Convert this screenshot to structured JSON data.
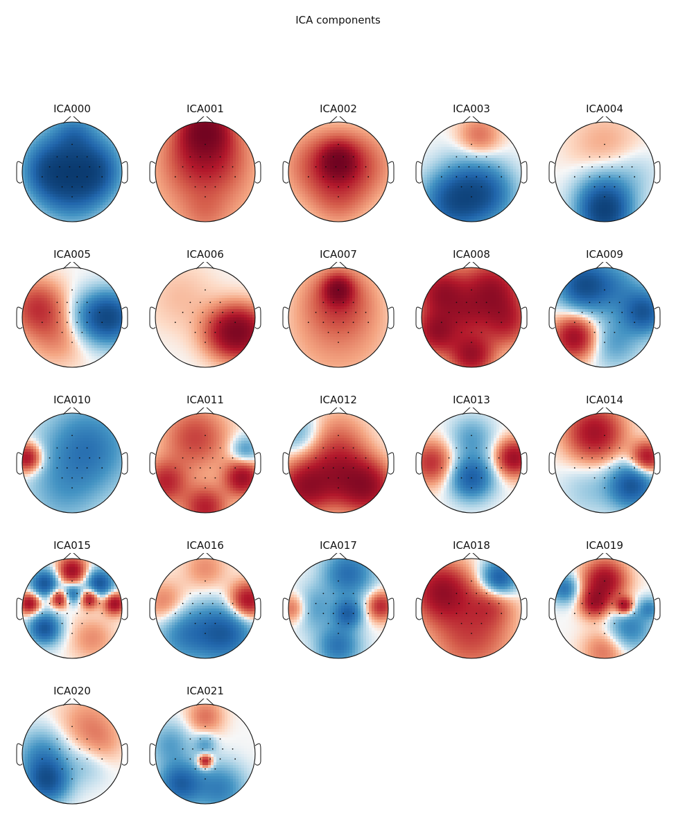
{
  "title": "ICA components",
  "chart_data": {
    "type": "heatmap",
    "title": "ICA components",
    "colormap": "RdBu_r",
    "colors": {
      "red": "#67001f",
      "blue": "#053061",
      "white": "#f7f7f7"
    },
    "components": [
      {
        "name": "ICA000",
        "blobs": [
          [
            0.0,
            0.2,
            -0.8,
            0.6
          ],
          [
            -0.45,
            0.0,
            -0.6,
            0.35
          ],
          [
            0.45,
            0.0,
            -0.6,
            0.35
          ],
          [
            0.0,
            -0.4,
            -0.5,
            0.45
          ],
          [
            0.05,
            0.75,
            -0.3,
            0.25
          ]
        ]
      },
      {
        "name": "ICA001",
        "blobs": [
          [
            0.0,
            0.85,
            1.0,
            0.3
          ],
          [
            0.0,
            0.45,
            0.7,
            0.5
          ],
          [
            0.0,
            -0.2,
            0.35,
            0.8
          ],
          [
            0.0,
            -0.85,
            0.15,
            0.3
          ]
        ]
      },
      {
        "name": "ICA002",
        "blobs": [
          [
            0.0,
            0.2,
            0.95,
            0.22
          ],
          [
            0.0,
            0.2,
            0.4,
            0.45
          ],
          [
            -0.5,
            0.1,
            0.35,
            0.5
          ],
          [
            0.5,
            0.1,
            0.35,
            0.5
          ],
          [
            0.0,
            -0.6,
            0.3,
            0.4
          ]
        ]
      },
      {
        "name": "ICA003",
        "blobs": [
          [
            0.15,
            0.7,
            0.45,
            0.3
          ],
          [
            -0.35,
            -0.6,
            -1.0,
            0.42
          ],
          [
            0.3,
            -0.45,
            -0.75,
            0.4
          ],
          [
            0.0,
            0.1,
            -0.2,
            0.4
          ]
        ]
      },
      {
        "name": "ICA004",
        "blobs": [
          [
            0.0,
            0.5,
            0.22,
            0.5
          ],
          [
            0.0,
            -0.85,
            -1.0,
            0.35
          ],
          [
            0.0,
            -0.45,
            -0.55,
            0.4
          ],
          [
            0.6,
            0.0,
            -0.15,
            0.35
          ]
        ]
      },
      {
        "name": "ICA005",
        "blobs": [
          [
            -0.7,
            0.2,
            0.65,
            0.38
          ],
          [
            0.8,
            0.0,
            -0.95,
            0.35
          ],
          [
            0.4,
            0.0,
            -0.45,
            0.35
          ],
          [
            -0.3,
            -0.4,
            0.3,
            0.4
          ]
        ]
      },
      {
        "name": "ICA006",
        "blobs": [
          [
            0.75,
            -0.3,
            1.0,
            0.35
          ],
          [
            0.4,
            -0.3,
            0.55,
            0.35
          ],
          [
            -0.5,
            0.4,
            0.15,
            0.5
          ]
        ]
      },
      {
        "name": "ICA007",
        "blobs": [
          [
            0.0,
            0.55,
            0.95,
            0.18
          ],
          [
            0.0,
            0.4,
            0.5,
            0.45
          ],
          [
            0.0,
            -0.3,
            0.3,
            0.75
          ]
        ]
      },
      {
        "name": "ICA008",
        "blobs": [
          [
            -0.6,
            0.5,
            1.0,
            0.35
          ],
          [
            0.4,
            0.55,
            1.0,
            0.4
          ],
          [
            -0.7,
            -0.3,
            1.0,
            0.3
          ],
          [
            0.0,
            -0.75,
            1.0,
            0.3
          ],
          [
            0.7,
            -0.1,
            0.7,
            0.35
          ],
          [
            -0.1,
            0.05,
            0.5,
            0.3
          ]
        ]
      },
      {
        "name": "ICA009",
        "blobs": [
          [
            -0.45,
            0.65,
            -1.0,
            0.35
          ],
          [
            0.8,
            0.1,
            -0.95,
            0.3
          ],
          [
            -0.6,
            -0.4,
            1.0,
            0.3
          ],
          [
            0.2,
            -0.5,
            -0.4,
            0.35
          ],
          [
            0.2,
            0.6,
            -0.5,
            0.4
          ]
        ]
      },
      {
        "name": "ICA010",
        "blobs": [
          [
            -0.9,
            0.1,
            1.0,
            0.2
          ],
          [
            0.3,
            0.3,
            -0.7,
            0.6
          ],
          [
            -0.2,
            -0.6,
            -0.3,
            0.5
          ]
        ]
      },
      {
        "name": "ICA011",
        "blobs": [
          [
            -0.2,
            0.5,
            0.6,
            0.45
          ],
          [
            0.75,
            -0.3,
            1.0,
            0.25
          ],
          [
            -0.8,
            -0.4,
            0.75,
            0.3
          ],
          [
            0.0,
            -0.9,
            0.8,
            0.3
          ],
          [
            0.8,
            0.25,
            -0.5,
            0.2
          ]
        ]
      },
      {
        "name": "ICA012",
        "blobs": [
          [
            -0.8,
            0.6,
            -0.35,
            0.3
          ],
          [
            0.0,
            -0.2,
            0.9,
            0.45
          ],
          [
            -0.7,
            -0.5,
            0.9,
            0.35
          ],
          [
            0.6,
            -0.5,
            0.9,
            0.35
          ],
          [
            0.0,
            0.6,
            0.25,
            0.4
          ]
        ]
      },
      {
        "name": "ICA013",
        "blobs": [
          [
            0.85,
            0.1,
            1.0,
            0.25
          ],
          [
            -0.8,
            0.0,
            0.7,
            0.3
          ],
          [
            0.0,
            -0.3,
            -0.9,
            0.3
          ],
          [
            0.0,
            0.5,
            -0.4,
            0.3
          ]
        ]
      },
      {
        "name": "ICA014",
        "blobs": [
          [
            -0.2,
            0.6,
            0.95,
            0.4
          ],
          [
            0.85,
            0.1,
            0.95,
            0.22
          ],
          [
            0.55,
            -0.45,
            -1.0,
            0.32
          ],
          [
            -0.3,
            -0.5,
            -0.2,
            0.4
          ]
        ]
      },
      {
        "name": "ICA015",
        "blobs": [
          [
            -0.85,
            0.1,
            1.0,
            0.15
          ],
          [
            0.85,
            0.1,
            1.0,
            0.15
          ],
          [
            0.0,
            0.75,
            1.0,
            0.2
          ],
          [
            -0.55,
            0.5,
            -1.0,
            0.2
          ],
          [
            0.55,
            0.5,
            -1.0,
            0.2
          ],
          [
            -0.55,
            -0.4,
            -1.0,
            0.22
          ],
          [
            0.0,
            0.3,
            -0.8,
            0.15
          ],
          [
            0.35,
            0.2,
            1.0,
            0.13
          ],
          [
            -0.25,
            0.2,
            1.0,
            0.13
          ],
          [
            0.4,
            -0.6,
            0.3,
            0.3
          ]
        ]
      },
      {
        "name": "ICA016",
        "blobs": [
          [
            0.85,
            0.15,
            1.0,
            0.25
          ],
          [
            -0.8,
            0.1,
            0.4,
            0.3
          ],
          [
            0.4,
            -0.5,
            -0.9,
            0.4
          ],
          [
            -0.4,
            -0.5,
            -0.6,
            0.4
          ],
          [
            0.0,
            0.8,
            0.3,
            0.3
          ]
        ]
      },
      {
        "name": "ICA017",
        "blobs": [
          [
            0.85,
            0.05,
            0.75,
            0.2
          ],
          [
            -0.9,
            0.0,
            0.5,
            0.2
          ],
          [
            0.2,
            0.7,
            -0.75,
            0.35
          ],
          [
            0.2,
            -0.1,
            -0.8,
            0.2
          ],
          [
            0.0,
            -0.75,
            -0.7,
            0.3
          ],
          [
            -0.5,
            0.0,
            -0.4,
            0.3
          ]
        ]
      },
      {
        "name": "ICA018",
        "blobs": [
          [
            -0.6,
            0.35,
            1.0,
            0.4
          ],
          [
            0.55,
            0.6,
            -1.0,
            0.25
          ],
          [
            0.0,
            -0.5,
            0.6,
            0.55
          ],
          [
            0.4,
            0.1,
            0.4,
            0.3
          ]
        ]
      },
      {
        "name": "ICA019",
        "blobs": [
          [
            0.0,
            0.55,
            1.0,
            0.3
          ],
          [
            0.4,
            0.05,
            1.0,
            0.12
          ],
          [
            -0.2,
            0.1,
            0.8,
            0.2
          ],
          [
            -0.8,
            0.4,
            -0.7,
            0.2
          ],
          [
            0.5,
            -0.4,
            -0.6,
            0.3
          ],
          [
            0.0,
            -0.85,
            0.4,
            0.3
          ],
          [
            0.9,
            0.0,
            -0.5,
            0.15
          ]
        ]
      },
      {
        "name": "ICA020",
        "blobs": [
          [
            -0.5,
            -0.55,
            -1.0,
            0.3
          ],
          [
            -0.6,
            0.0,
            -0.5,
            0.35
          ],
          [
            0.3,
            0.6,
            0.3,
            0.4
          ],
          [
            0.3,
            -0.2,
            -0.2,
            0.3
          ],
          [
            0.6,
            0.2,
            0.2,
            0.3
          ]
        ]
      },
      {
        "name": "ICA021",
        "blobs": [
          [
            0.0,
            -0.15,
            1.0,
            0.1
          ],
          [
            -0.5,
            -0.6,
            -0.9,
            0.3
          ],
          [
            0.3,
            -0.7,
            -0.6,
            0.35
          ],
          [
            0.0,
            0.75,
            0.4,
            0.25
          ],
          [
            -0.7,
            0.2,
            -0.4,
            0.3
          ],
          [
            0.0,
            0.2,
            -0.4,
            0.15
          ]
        ]
      }
    ]
  }
}
